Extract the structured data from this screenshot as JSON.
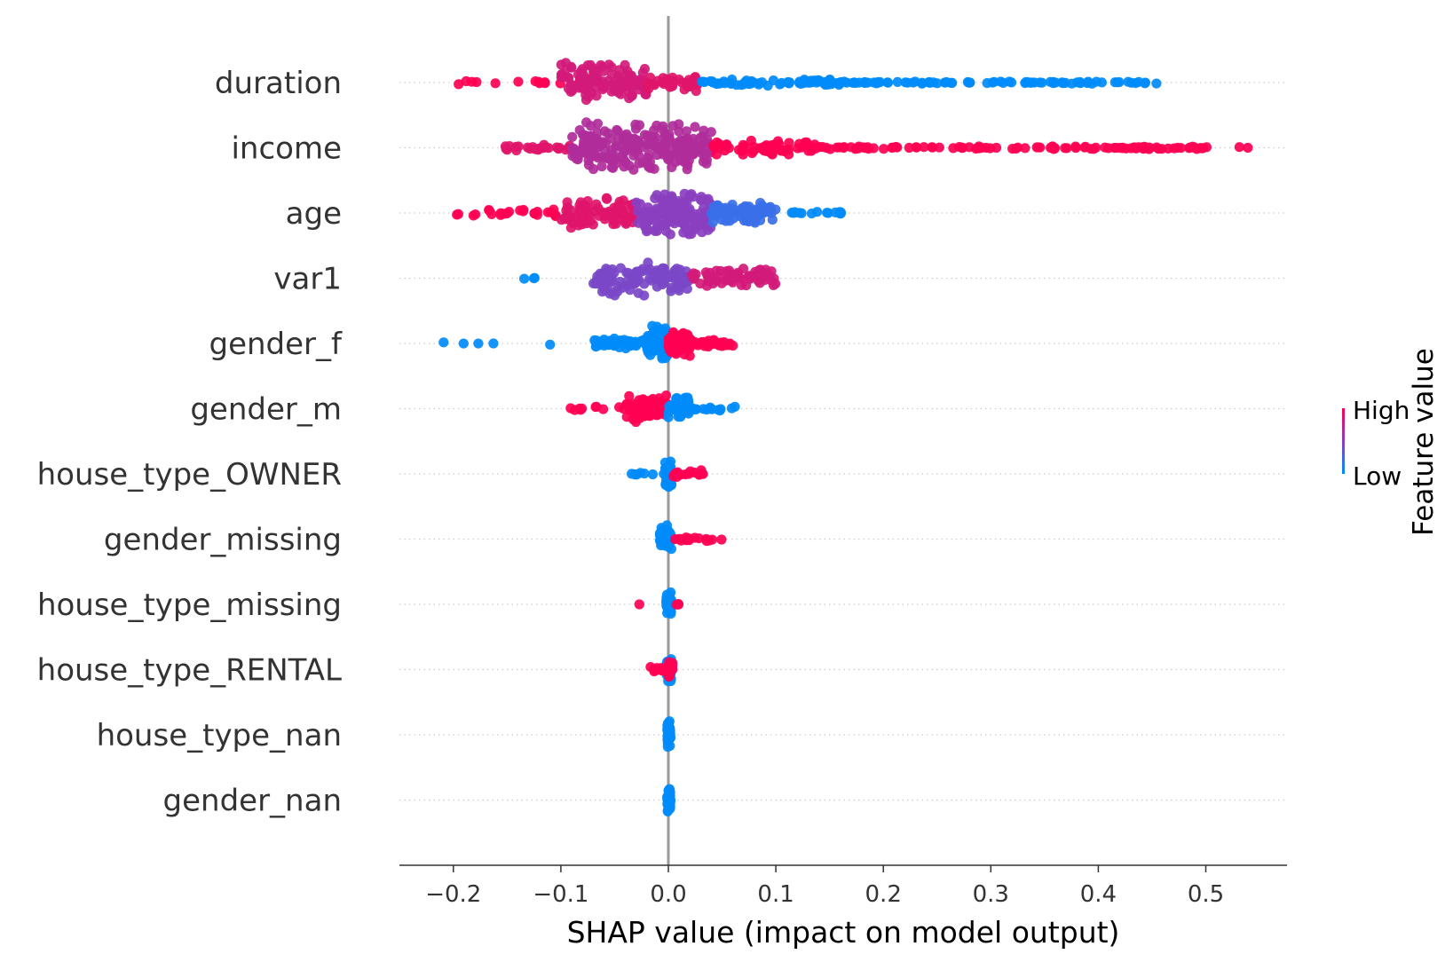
{
  "chart_data": {
    "type": "scatter",
    "subtype": "shap-beeswarm",
    "title": "",
    "xlabel": "SHAP value (impact on model output)",
    "ylabel": "",
    "xlim": [
      -0.25,
      0.575
    ],
    "xticks": [
      -0.2,
      -0.1,
      0.0,
      0.1,
      0.2,
      0.3,
      0.4,
      0.5
    ],
    "xtick_labels": [
      "−0.2",
      "−0.1",
      "0.0",
      "0.1",
      "0.2",
      "0.3",
      "0.4",
      "0.5"
    ],
    "grid": "horizontal dotted row guides",
    "legend": {
      "type": "colorbar",
      "title": "Feature value",
      "high_label": "High",
      "low_label": "Low",
      "placement": "right",
      "high_color": "#ff0052",
      "low_color": "#008bfb"
    },
    "features": [
      {
        "name": "duration",
        "segments": [
          {
            "range": [
              -0.215,
              -0.1
            ],
            "color": "#ff0052",
            "count": 12,
            "spread": 0.1
          },
          {
            "range": [
              -0.1,
              -0.02
            ],
            "color": "#d21a79",
            "count": 120,
            "spread": 0.85
          },
          {
            "range": [
              -0.02,
              0.03
            ],
            "color": "#e0156a",
            "count": 30,
            "spread": 0.35
          },
          {
            "range": [
              0.03,
              0.16
            ],
            "color": "#008bfb",
            "count": 70,
            "spread": 0.12
          },
          {
            "range": [
              0.16,
              0.463
            ],
            "color": "#008bfb",
            "count": 80,
            "spread": 0.05
          }
        ]
      },
      {
        "name": "income",
        "segments": [
          {
            "range": [
              -0.155,
              -0.09
            ],
            "color": "#e0156a",
            "count": 25,
            "spread": 0.15
          },
          {
            "range": [
              -0.09,
              0.04
            ],
            "color": "#b02c9a",
            "count": 220,
            "spread": 1.0
          },
          {
            "range": [
              0.04,
              0.14
            ],
            "color": "#ff0052",
            "count": 60,
            "spread": 0.3
          },
          {
            "range": [
              0.14,
              0.54
            ],
            "color": "#ff0052",
            "count": 110,
            "spread": 0.06
          }
        ]
      },
      {
        "name": "age",
        "segments": [
          {
            "range": [
              -0.2,
              -0.1
            ],
            "color": "#ff0052",
            "count": 25,
            "spread": 0.15
          },
          {
            "range": [
              -0.1,
              -0.03
            ],
            "color": "#e0156a",
            "count": 90,
            "spread": 0.6
          },
          {
            "range": [
              -0.03,
              0.04
            ],
            "color": "#8a3fc0",
            "count": 140,
            "spread": 0.9
          },
          {
            "range": [
              0.04,
              0.1
            ],
            "color": "#3a6fe8",
            "count": 70,
            "spread": 0.45
          },
          {
            "range": [
              0.1,
              0.2
            ],
            "color": "#008bfb",
            "count": 15,
            "spread": 0.05
          }
        ]
      },
      {
        "name": "var1",
        "segments": [
          {
            "range": [
              -0.135,
              -0.11
            ],
            "color": "#008bfb",
            "count": 3,
            "spread": 0.05
          },
          {
            "range": [
              -0.07,
              0.02
            ],
            "color": "#7a48c8",
            "count": 110,
            "spread": 0.7
          },
          {
            "range": [
              0.02,
              0.1
            ],
            "color": "#d21a79",
            "count": 60,
            "spread": 0.4
          }
        ]
      },
      {
        "name": "gender_f",
        "segments": [
          {
            "range": [
              -0.215,
              -0.09
            ],
            "color": "#008bfb",
            "count": 5,
            "spread": 0.05
          },
          {
            "range": [
              -0.07,
              -0.02
            ],
            "color": "#008bfb",
            "count": 60,
            "spread": 0.2
          },
          {
            "range": [
              -0.02,
              0.0
            ],
            "color": "#008bfb",
            "count": 60,
            "spread": 0.75
          },
          {
            "range": [
              0.0,
              0.02
            ],
            "color": "#ff0052",
            "count": 50,
            "spread": 0.6
          },
          {
            "range": [
              0.02,
              0.062
            ],
            "color": "#ff0052",
            "count": 40,
            "spread": 0.15
          }
        ]
      },
      {
        "name": "gender_m",
        "segments": [
          {
            "range": [
              -0.092,
              -0.04
            ],
            "color": "#ff0052",
            "count": 10,
            "spread": 0.1
          },
          {
            "range": [
              -0.04,
              0.0
            ],
            "color": "#ff0052",
            "count": 60,
            "spread": 0.55
          },
          {
            "range": [
              0.0,
              0.02
            ],
            "color": "#008bfb",
            "count": 40,
            "spread": 0.5
          },
          {
            "range": [
              0.02,
              0.062
            ],
            "color": "#008bfb",
            "count": 15,
            "spread": 0.1
          }
        ]
      },
      {
        "name": "house_type_OWNER",
        "segments": [
          {
            "range": [
              -0.035,
              0.0
            ],
            "color": "#008bfb",
            "count": 8,
            "spread": 0.05
          },
          {
            "range": [
              -0.003,
              0.003
            ],
            "color": "#008bfb",
            "count": 40,
            "spread": 0.55
          },
          {
            "range": [
              0.003,
              0.034
            ],
            "color": "#ff0052",
            "count": 15,
            "spread": 0.15
          }
        ]
      },
      {
        "name": "gender_missing",
        "segments": [
          {
            "range": [
              -0.008,
              0.003
            ],
            "color": "#008bfb",
            "count": 50,
            "spread": 0.55
          },
          {
            "range": [
              0.005,
              0.05
            ],
            "color": "#ff0052",
            "count": 15,
            "spread": 0.1
          }
        ]
      },
      {
        "name": "house_type_missing",
        "segments": [
          {
            "range": [
              -0.002,
              0.003
            ],
            "color": "#008bfb",
            "count": 45,
            "spread": 0.5
          },
          {
            "range": [
              -0.027,
              -0.027
            ],
            "color": "#ff0052",
            "count": 1,
            "spread": 0.0
          },
          {
            "range": [
              0.007,
              0.01
            ],
            "color": "#ff0052",
            "count": 3,
            "spread": 0.05
          }
        ]
      },
      {
        "name": "house_type_RENTAL",
        "segments": [
          {
            "range": [
              -0.002,
              0.003
            ],
            "color": "#008bfb",
            "count": 40,
            "spread": 0.5
          },
          {
            "range": [
              -0.018,
              0.0
            ],
            "color": "#ff0052",
            "count": 12,
            "spread": 0.1
          },
          {
            "range": [
              0.0,
              0.004
            ],
            "color": "#ff0052",
            "count": 10,
            "spread": 0.35
          }
        ]
      },
      {
        "name": "house_type_nan",
        "segments": [
          {
            "range": [
              -0.001,
              0.002
            ],
            "color": "#008bfb",
            "count": 50,
            "spread": 0.55
          }
        ]
      },
      {
        "name": "gender_nan",
        "segments": [
          {
            "range": [
              -0.001,
              0.002
            ],
            "color": "#008bfb",
            "count": 50,
            "spread": 0.55
          }
        ]
      }
    ]
  }
}
